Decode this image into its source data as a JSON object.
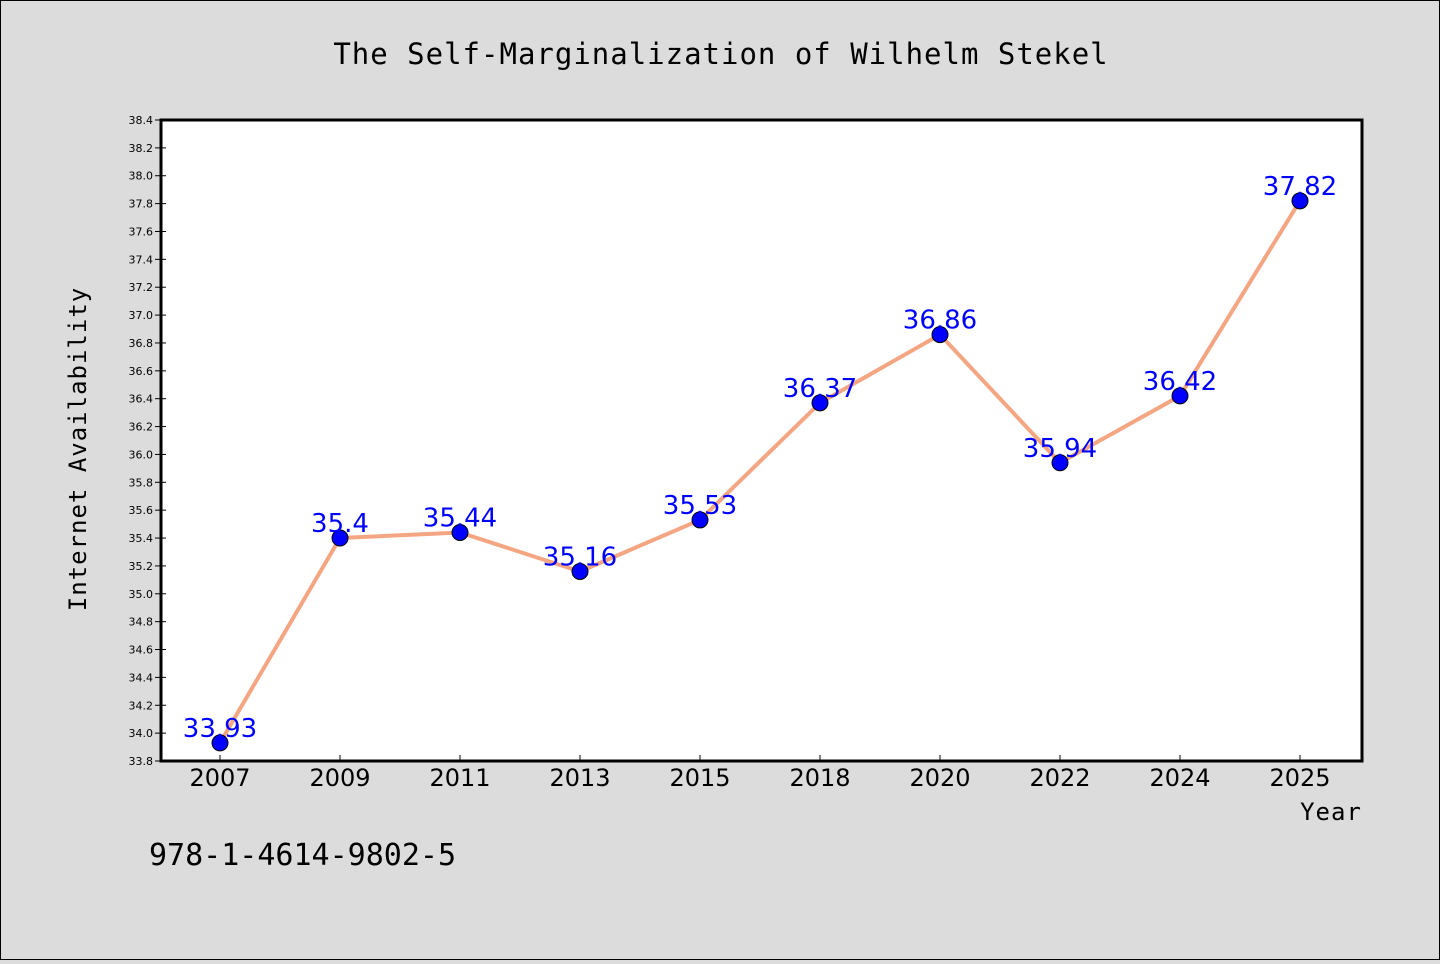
{
  "chart_data": {
    "type": "line",
    "title": "The Self-Marginalization of Wilhelm Stekel",
    "xlabel": "Year",
    "ylabel": "Internet Availability",
    "categories": [
      "2007",
      "2009",
      "2011",
      "2013",
      "2015",
      "2018",
      "2020",
      "2022",
      "2024",
      "2025"
    ],
    "values": [
      33.93,
      35.4,
      35.44,
      35.16,
      35.53,
      36.37,
      36.86,
      35.94,
      36.42,
      37.82
    ],
    "data_labels": [
      "33.93",
      "35.4",
      "35.44",
      "35.16",
      "35.53",
      "36.37",
      "36.86",
      "35.94",
      "36.42",
      "37.82"
    ],
    "ylim": [
      33.8,
      38.4
    ],
    "yticks": [
      "33.8",
      "34.0",
      "34.2",
      "34.4",
      "34.6",
      "34.8",
      "35.0",
      "35.2",
      "35.4",
      "35.6",
      "35.8",
      "36.0",
      "36.2",
      "36.4",
      "36.6",
      "36.8",
      "37.0",
      "37.2",
      "37.4",
      "37.6",
      "37.8",
      "38.0",
      "38.2",
      "38.4"
    ],
    "grid": false,
    "line_color": "#f4a582",
    "marker_color": "#0000ff",
    "label_color": "#0000ff"
  },
  "footnote": "978-1-4614-9802-5"
}
